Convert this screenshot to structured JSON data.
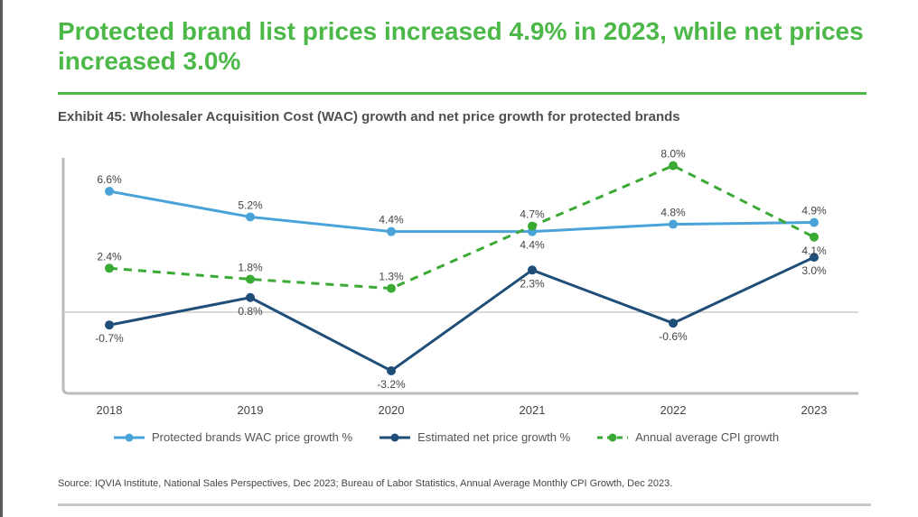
{
  "headline": "Protected brand list prices increased 4.9% in 2023, while net prices increased 3.0%",
  "exhibit_title": "Exhibit 45: Wholesaler Acquisition Cost (WAC) growth and net price growth for protected brands",
  "source": "Source: IQVIA Institute, National Sales Perspectives, Dec 2023; Bureau of Labor Statistics, Annual Average Monthly CPI Growth, Dec 2023.",
  "colors": {
    "headline": "#4cb848",
    "wac": "#4aa3d8",
    "net": "#1f4e79",
    "cpi": "#3aaa35",
    "zero_line": "#cccccc",
    "axis_frame": "#bbbbbb"
  },
  "chart_data": {
    "type": "line",
    "categories": [
      "2018",
      "2019",
      "2020",
      "2021",
      "2022",
      "2023"
    ],
    "ylim": [
      -5,
      10
    ],
    "grid": false,
    "legend_position": "bottom",
    "series": [
      {
        "name": "Protected brands WAC price growth %",
        "key": "wac",
        "style": "solid",
        "values": [
          6.6,
          5.2,
          4.4,
          4.4,
          4.8,
          4.9
        ],
        "labels": [
          "6.6%",
          "5.2%",
          "4.4%",
          "4.4%",
          "4.8%",
          "4.9%"
        ],
        "label_pos": [
          "above",
          "above",
          "above",
          "below",
          "above",
          "above"
        ]
      },
      {
        "name": "Estimated net price growth %",
        "key": "net",
        "style": "solid",
        "values": [
          -0.7,
          0.8,
          -3.2,
          2.3,
          -0.6,
          3.0
        ],
        "labels": [
          "-0.7%",
          "0.8%",
          "-3.2%",
          "2.3%",
          "-0.6%",
          "3.0%"
        ],
        "label_pos": [
          "below",
          "below",
          "below",
          "below",
          "below",
          "below"
        ]
      },
      {
        "name": "Annual average CPI growth",
        "key": "cpi",
        "style": "dashed",
        "values": [
          2.4,
          1.8,
          1.3,
          4.7,
          8.0,
          4.1
        ],
        "labels": [
          "2.4%",
          "1.8%",
          "1.3%",
          "4.7%",
          "8.0%",
          "4.1%"
        ],
        "label_pos": [
          "above",
          "above",
          "above",
          "above",
          "above",
          "below"
        ]
      }
    ]
  }
}
